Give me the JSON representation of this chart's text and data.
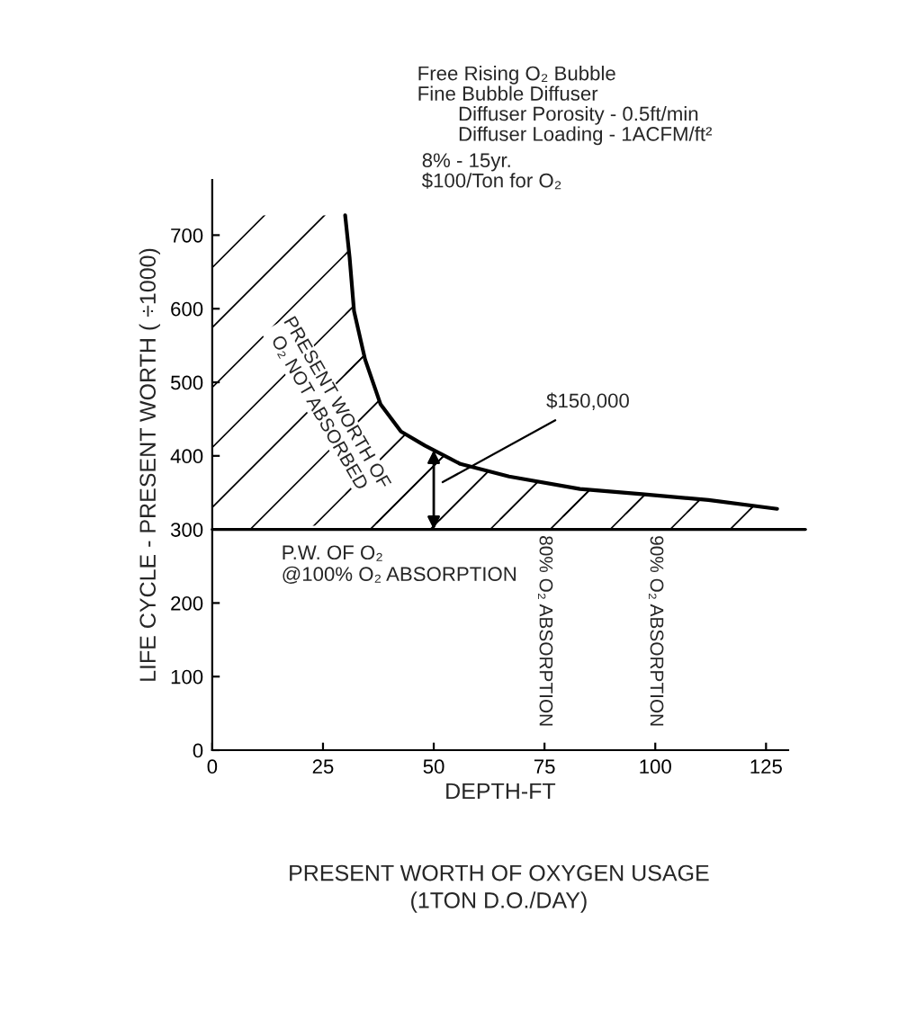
{
  "chart_data": {
    "type": "area",
    "title": "PRESENT WORTH OF OXYGEN USAGE",
    "subtitle": "(1TON D.O./DAY)",
    "xlabel": "DEPTH-FT",
    "ylabel": "LIFE CYCLE - PRESENT WORTH ( ÷1000)",
    "x": [
      30,
      31,
      32,
      34.5,
      38,
      42.6,
      48,
      56,
      67,
      83,
      97,
      112,
      127.5
    ],
    "series": [
      {
        "color": "#000000",
        "values": [
          727,
          670,
          597,
          531,
          470,
          433,
          414,
          389,
          372,
          355,
          348,
          340,
          328
        ]
      }
    ],
    "xlim": [
      0,
      130
    ],
    "ylim": [
      0,
      775
    ],
    "xticks": [
      0,
      25,
      50,
      75,
      100,
      125
    ],
    "yticks": [
      0,
      100,
      200,
      300,
      400,
      500,
      600,
      700
    ],
    "grid": false,
    "ref_lines": [
      {
        "axis": "y",
        "value": 300,
        "color": "#000000"
      }
    ],
    "bands": [
      {
        "axis": "y",
        "from": 300,
        "to": 727,
        "color": "#000000"
      }
    ],
    "annotations": [
      "Free Rising O₂ Bubble",
      "Fine Bubble Diffuser",
      "Diffuser Porosity - 0.5ft/min",
      "Diffuser Loading - 1ACFM/ft²",
      "8% - 15yr.",
      "$100/Ton for O₂",
      "$150,000",
      "PRESENT WORTH OF\nO₂ NOT ABSORBED",
      "P.W. OF O₂\n@100% O₂ ABSORPTION",
      {
        "text": "80% O₂ ABSORPTION",
        "x": 75,
        "y": 300
      },
      {
        "text": "90% O₂ ABSORPTION",
        "x": 100,
        "y": 300
      }
    ]
  }
}
